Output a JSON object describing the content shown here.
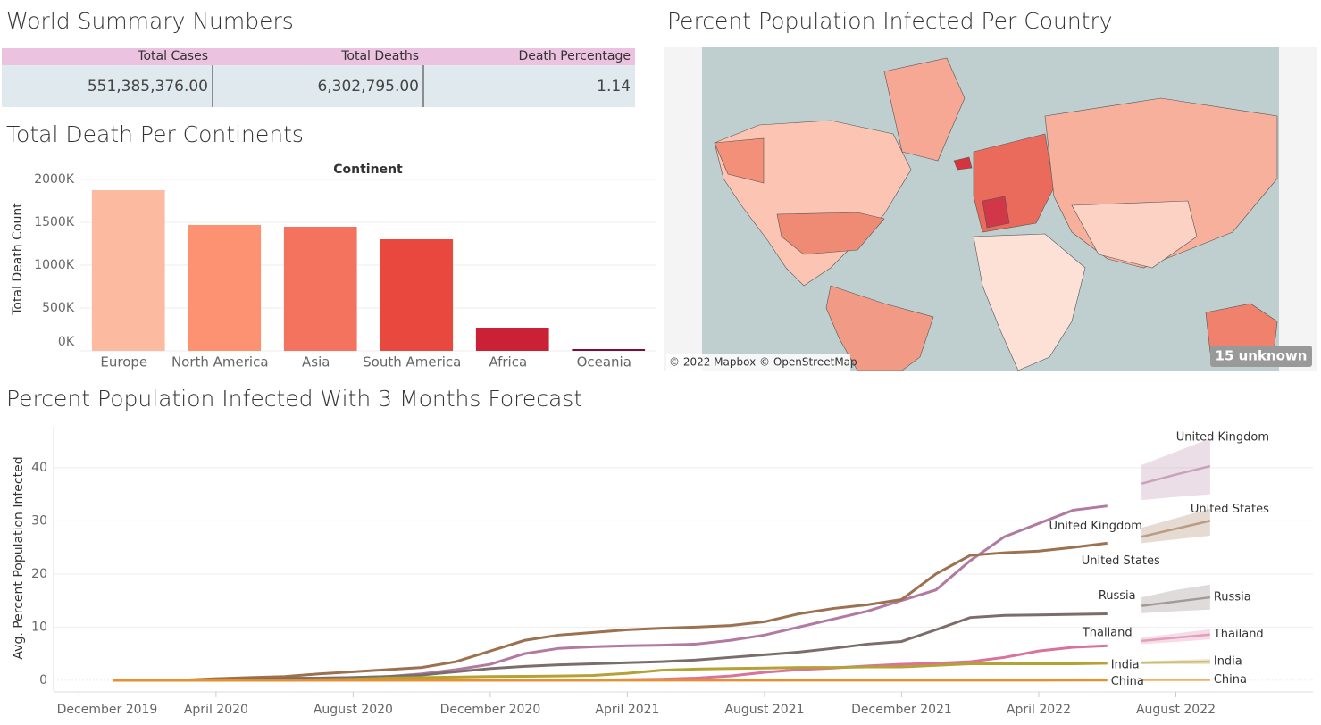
{
  "summary": {
    "title": "World Summary Numbers",
    "columns": [
      "Total Cases",
      "Total Deaths",
      "Death Percentage"
    ],
    "rows": [
      [
        "551,385,376.00",
        "6,302,795.00",
        "1.14"
      ]
    ]
  },
  "chart_data": [
    {
      "type": "bar",
      "title": "Total Death Per Continents",
      "header": "Continent",
      "y_label": "Total Death Count",
      "categories": [
        "Europe",
        "North America",
        "Asia",
        "South America",
        "Africa",
        "Oceania"
      ],
      "values": [
        1875000,
        1469000,
        1448000,
        1302000,
        271000,
        21000
      ],
      "colors": [
        "#fcbba1",
        "#fc9272",
        "#f4735f",
        "#e9483f",
        "#cb2136",
        "#7a0f3c"
      ],
      "ylim": [
        0,
        2000000
      ],
      "yticks": [
        {
          "value": 0,
          "label": "0K"
        },
        {
          "value": 500000,
          "label": "500K"
        },
        {
          "value": 1000000,
          "label": "1000K"
        },
        {
          "value": 1500000,
          "label": "1500K"
        },
        {
          "value": 2000000,
          "label": "2000K"
        }
      ],
      "grid": true
    },
    {
      "type": "map",
      "title": "Percent Population Infected Per Country",
      "attribution": "© 2022 Mapbox © OpenStreetMap",
      "unknown_badge": "15 unknown"
    },
    {
      "type": "line",
      "title": "Percent Population Infected With 3 Months Forecast",
      "y_label": "Avg. Percent Population Infected",
      "x": [
        "2020-01",
        "2020-02",
        "2020-03",
        "2020-04",
        "2020-05",
        "2020-06",
        "2020-07",
        "2020-08",
        "2020-09",
        "2020-10",
        "2020-11",
        "2020-12",
        "2021-01",
        "2021-02",
        "2021-03",
        "2021-04",
        "2021-05",
        "2021-06",
        "2021-07",
        "2021-08",
        "2021-09",
        "2021-10",
        "2021-11",
        "2021-12",
        "2022-01",
        "2022-02",
        "2022-03",
        "2022-04",
        "2022-05",
        "2022-06"
      ],
      "forecast_x": [
        "2022-07",
        "2022-08",
        "2022-09"
      ],
      "series": [
        {
          "name": "United Kingdom",
          "color": "#b07aa1",
          "values": [
            0,
            0,
            0,
            0.1,
            0.3,
            0.4,
            0.4,
            0.5,
            0.7,
            1.2,
            2,
            3,
            5,
            6,
            6.3,
            6.5,
            6.6,
            6.8,
            7.5,
            8.5,
            10,
            11.5,
            13,
            15,
            17,
            22.5,
            27,
            29.5,
            32,
            32.8
          ],
          "forecast": [
            37,
            38.7,
            40.3
          ],
          "forecast_lower": [
            33.9,
            34.5,
            35
          ],
          "forecast_upper": [
            40.5,
            43,
            45.5
          ]
        },
        {
          "name": "United States",
          "color": "#9c7150",
          "values": [
            0,
            0,
            0,
            0.3,
            0.5,
            0.7,
            1.2,
            1.6,
            2,
            2.4,
            3.5,
            5.5,
            7.5,
            8.5,
            9,
            9.5,
            9.8,
            10,
            10.3,
            11,
            12.5,
            13.5,
            14.2,
            15.2,
            20,
            23.5,
            24,
            24.3,
            25,
            25.8
          ],
          "forecast": [
            27,
            28.5,
            30
          ],
          "forecast_lower": [
            25.8,
            26.5,
            27.2
          ],
          "forecast_upper": [
            28.7,
            30.5,
            32.3
          ]
        },
        {
          "name": "Russia",
          "color": "#7b6e6a",
          "values": [
            0,
            0,
            0,
            0,
            0.2,
            0.3,
            0.4,
            0.5,
            0.7,
            1,
            1.6,
            2.2,
            2.6,
            2.9,
            3.1,
            3.3,
            3.5,
            3.8,
            4.3,
            4.8,
            5.3,
            6,
            6.8,
            7.3,
            9.5,
            11.8,
            12.2,
            12.3,
            12.4,
            12.5
          ],
          "forecast": [
            14,
            14.8,
            15.6
          ],
          "forecast_lower": [
            12.6,
            13,
            13.3
          ],
          "forecast_upper": [
            15.6,
            17,
            18
          ]
        },
        {
          "name": "Thailand",
          "color": "#d9739c",
          "values": [
            0,
            0,
            0,
            0,
            0,
            0,
            0,
            0,
            0,
            0,
            0,
            0,
            0,
            0,
            0,
            0.1,
            0.2,
            0.4,
            0.8,
            1.5,
            2,
            2.3,
            2.7,
            3,
            3.2,
            3.5,
            4.3,
            5.5,
            6.2,
            6.5
          ],
          "forecast": [
            7.4,
            8,
            8.6
          ],
          "forecast_lower": [
            6.8,
            7.2,
            7.7
          ],
          "forecast_upper": [
            8,
            8.8,
            9.6
          ]
        },
        {
          "name": "India",
          "color": "#b5a134",
          "values": [
            0,
            0,
            0,
            0,
            0,
            0,
            0.1,
            0.2,
            0.4,
            0.5,
            0.6,
            0.7,
            0.75,
            0.8,
            0.9,
            1.3,
            1.9,
            2.1,
            2.2,
            2.3,
            2.4,
            2.4,
            2.5,
            2.5,
            2.8,
            3.1,
            3.1,
            3.1,
            3.1,
            3.2
          ],
          "forecast": [
            3.3,
            3.4,
            3.5
          ],
          "forecast_lower": [
            3,
            3,
            3
          ],
          "forecast_upper": [
            3.6,
            3.8,
            4
          ]
        },
        {
          "name": "China",
          "color": "#e8902c",
          "values": [
            0,
            0,
            0,
            0,
            0,
            0,
            0,
            0,
            0,
            0,
            0,
            0,
            0,
            0,
            0,
            0,
            0,
            0,
            0,
            0,
            0,
            0,
            0,
            0,
            0,
            0,
            0,
            0.01,
            0.02,
            0.03
          ],
          "forecast": [
            0.05,
            0.05,
            0.05
          ],
          "forecast_lower": [
            0,
            0,
            0
          ],
          "forecast_upper": [
            0.2,
            0.2,
            0.2
          ]
        }
      ],
      "xlim": [
        "2019-11",
        "2022-12"
      ],
      "xticks": [
        {
          "value": "2019-12",
          "label": "December 2019"
        },
        {
          "value": "2020-04",
          "label": "April 2020"
        },
        {
          "value": "2020-08",
          "label": "August 2020"
        },
        {
          "value": "2020-12",
          "label": "December 2020"
        },
        {
          "value": "2021-04",
          "label": "April 2021"
        },
        {
          "value": "2021-08",
          "label": "August 2021"
        },
        {
          "value": "2021-12",
          "label": "December 2021"
        },
        {
          "value": "2022-04",
          "label": "April 2022"
        },
        {
          "value": "2022-08",
          "label": "August 2022"
        }
      ],
      "ylim": [
        -2.2,
        47.7
      ],
      "yticks": [
        0,
        10,
        20,
        30,
        40
      ],
      "grid": true
    }
  ]
}
